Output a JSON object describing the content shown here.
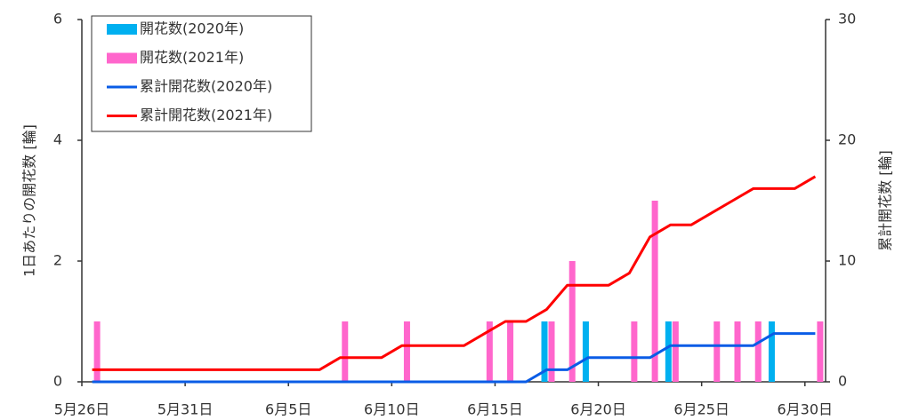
{
  "chart_data": {
    "type": "bar",
    "categories": [
      "5月26日",
      null,
      null,
      null,
      null,
      "5月31日",
      null,
      null,
      null,
      null,
      "6月5日",
      null,
      null,
      null,
      null,
      "6月10日",
      null,
      null,
      null,
      null,
      "6月15日",
      null,
      null,
      null,
      null,
      "6月20日",
      null,
      null,
      null,
      null,
      "6月25日",
      null,
      null,
      null,
      null,
      "6月30日"
    ],
    "y_label": "1日あたりの開花数 [輪]",
    "y2_label": "累計開花数 [輪]",
    "ylim": [
      0,
      6
    ],
    "yticks": [
      0,
      2,
      4,
      6
    ],
    "y2lim": [
      0,
      30
    ],
    "y2ticks": [
      0,
      10,
      20,
      30
    ],
    "legend": "upper left",
    "series": [
      {
        "name": "開花数(2020年)",
        "type": "bar",
        "color": "#00b0f0",
        "axis": "y",
        "values": [
          0,
          0,
          0,
          0,
          0,
          0,
          0,
          0,
          0,
          0,
          0,
          0,
          0,
          0,
          0,
          0,
          0,
          0,
          0,
          0,
          0,
          0,
          1,
          0,
          1,
          0,
          0,
          0,
          1,
          0,
          0,
          0,
          0,
          1,
          0,
          0
        ]
      },
      {
        "name": "開花数(2021年)",
        "type": "bar",
        "color": "#ff66cc",
        "axis": "y",
        "values": [
          1,
          0,
          0,
          0,
          0,
          0,
          0,
          0,
          0,
          0,
          0,
          0,
          1,
          0,
          0,
          1,
          0,
          0,
          0,
          1,
          1,
          0,
          1,
          2,
          0,
          0,
          1,
          3,
          1,
          0,
          1,
          1,
          1,
          0,
          0,
          1
        ]
      },
      {
        "name": "累計開花数(2020年)",
        "type": "line",
        "color": "#0a5ce6",
        "axis": "y2",
        "values": [
          0,
          0,
          0,
          0,
          0,
          0,
          0,
          0,
          0,
          0,
          0,
          0,
          0,
          0,
          0,
          0,
          0,
          0,
          0,
          0,
          0,
          0,
          1,
          1,
          2,
          2,
          2,
          2,
          3,
          3,
          3,
          3,
          3,
          4,
          4,
          4
        ]
      },
      {
        "name": "累計開花数(2021年)",
        "type": "line",
        "color": "#ff0000",
        "axis": "y2",
        "values": [
          1,
          1,
          1,
          1,
          1,
          1,
          1,
          1,
          1,
          1,
          1,
          1,
          2,
          2,
          2,
          3,
          3,
          3,
          3,
          4,
          5,
          5,
          6,
          8,
          8,
          8,
          9,
          12,
          13,
          13,
          14,
          15,
          16,
          16,
          16,
          17
        ]
      }
    ]
  }
}
